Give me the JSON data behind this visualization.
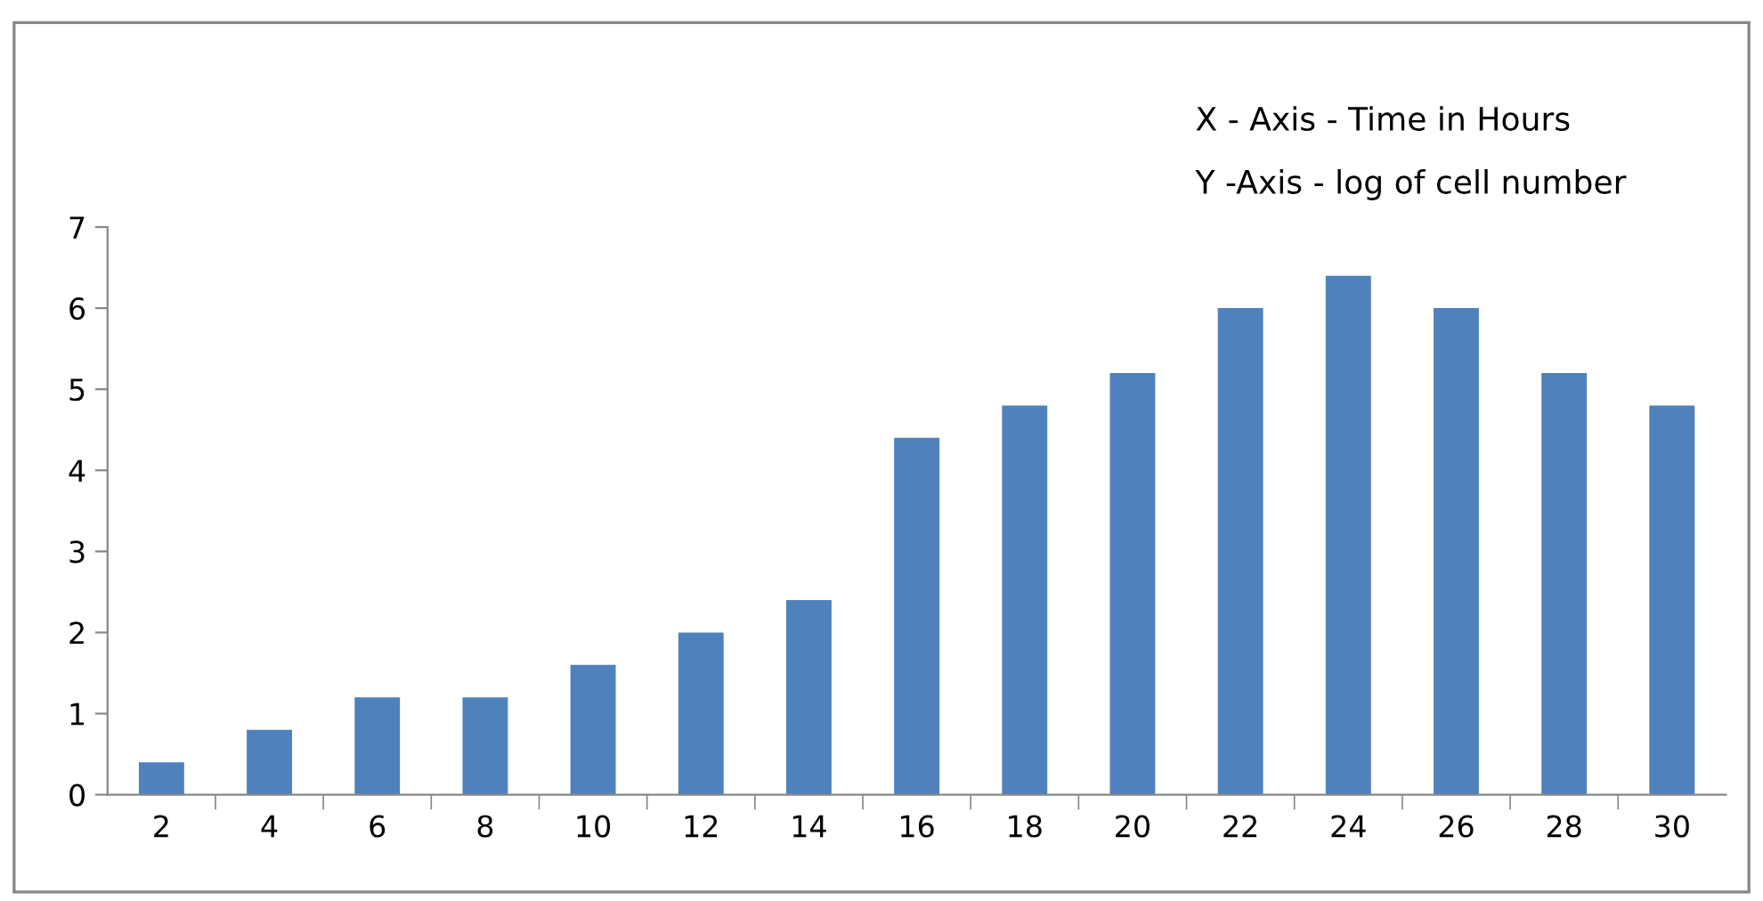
{
  "chart_data": {
    "type": "bar",
    "categories": [
      "2",
      "4",
      "6",
      "8",
      "10",
      "12",
      "14",
      "16",
      "18",
      "20",
      "22",
      "24",
      "26",
      "28",
      "30"
    ],
    "values": [
      0.4,
      0.8,
      1.2,
      1.2,
      1.6,
      2,
      2.4,
      4.4,
      4.8,
      5.2,
      6,
      6.4,
      6,
      5.2,
      4.8
    ],
    "color": "#4f81bd",
    "ylim": [
      0,
      7
    ],
    "yticks": [
      0,
      1,
      2,
      3,
      4,
      5,
      6,
      7
    ],
    "grid": false,
    "legend": false,
    "annotations": [
      "X - Axis - Time in Hours",
      "Y -Axis - log of cell number"
    ]
  }
}
